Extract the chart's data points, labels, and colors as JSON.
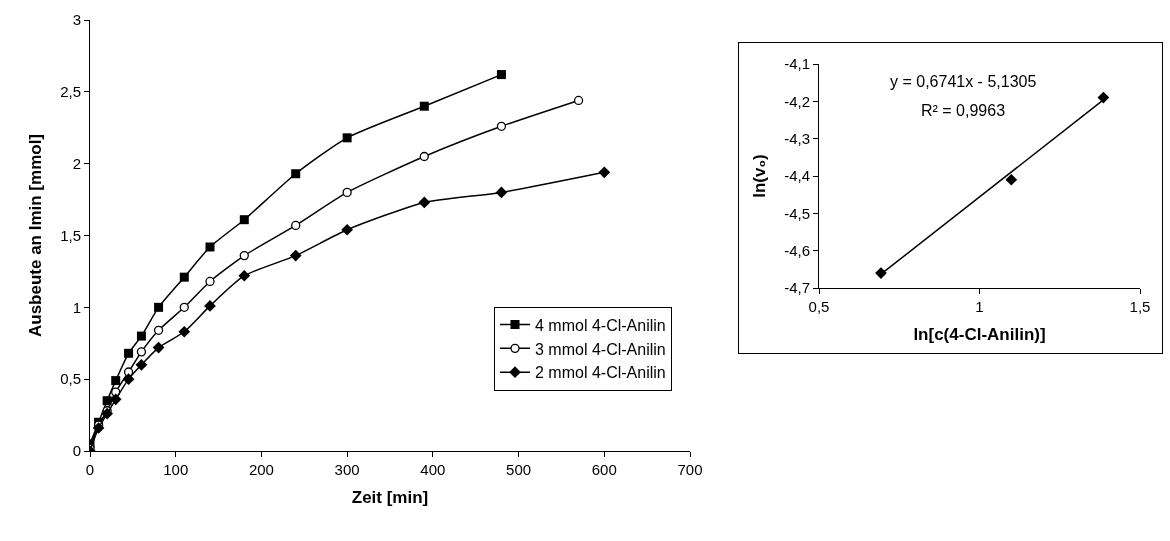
{
  "chart_data": [
    {
      "type": "line",
      "xlabel": "Zeit [min]",
      "ylabel": "Ausbeute an Imin [mmol]",
      "xlim": [
        0,
        700
      ],
      "ylim": [
        0,
        3
      ],
      "xticks": [
        0,
        100,
        200,
        300,
        400,
        500,
        600,
        700
      ],
      "yticks": [
        0,
        {
          "value": 0.5,
          "label": "0,5"
        },
        1,
        {
          "value": 1.5,
          "label": "1,5"
        },
        2,
        {
          "value": 2.5,
          "label": "2,5"
        },
        3
      ],
      "grid": false,
      "legend": "bottom right",
      "line_style": "solid",
      "series": [
        {
          "name": "4 mmol 4-Cl-Anilin",
          "color": "#000000",
          "marker": "square",
          "x": [
            0,
            10,
            20,
            30,
            45,
            60,
            80,
            110,
            140,
            180,
            240,
            300,
            390,
            480
          ],
          "values": [
            0.05,
            0.2,
            0.35,
            0.49,
            0.68,
            0.8,
            1.0,
            1.21,
            1.42,
            1.61,
            1.93,
            2.18,
            2.4,
            2.62
          ]
        },
        {
          "name": "3 mmol 4-Cl-Anilin",
          "color": "#000000",
          "marker": "circle",
          "x": [
            0,
            10,
            20,
            30,
            45,
            60,
            80,
            110,
            140,
            180,
            240,
            300,
            390,
            480,
            570
          ],
          "values": [
            0.02,
            0.18,
            0.28,
            0.41,
            0.55,
            0.69,
            0.84,
            1.0,
            1.18,
            1.36,
            1.57,
            1.8,
            2.05,
            2.26,
            2.44
          ]
        },
        {
          "name": "2 mmol 4-Cl-Anilin",
          "color": "#000000",
          "marker": "diamond",
          "x": [
            0,
            10,
            20,
            30,
            45,
            60,
            80,
            110,
            140,
            180,
            240,
            300,
            390,
            480,
            600
          ],
          "values": [
            0,
            0.16,
            0.26,
            0.36,
            0.5,
            0.6,
            0.72,
            0.83,
            1.01,
            1.22,
            1.36,
            1.54,
            1.73,
            1.8,
            1.94
          ]
        }
      ]
    },
    {
      "type": "scatter",
      "xlabel": "ln[c(4-Cl-Anilin)]",
      "ylabel": "ln(v₀)",
      "xlim": [
        0.5,
        1.5
      ],
      "ylim": [
        -4.7,
        -4.1
      ],
      "xticks": [
        {
          "value": 0.5,
          "label": "0,5"
        },
        1,
        {
          "value": 1.5,
          "label": "1,5"
        }
      ],
      "yticks": [
        {
          "value": -4.7,
          "label": "-4,7"
        },
        {
          "value": -4.6,
          "label": "-4,6"
        },
        {
          "value": -4.5,
          "label": "-4,5"
        },
        {
          "value": -4.4,
          "label": "-4,4"
        },
        {
          "value": -4.3,
          "label": "-4,3"
        },
        {
          "value": -4.2,
          "label": "-4,2"
        },
        {
          "value": -4.1,
          "label": "-4,1"
        }
      ],
      "grid": false,
      "legend": false,
      "annotations": [
        "y = 0,6741x - 5,1305",
        "R² = 0,9963"
      ],
      "series": [
        {
          "color": "#000000",
          "marker": "diamond",
          "x": [
            0.693,
            1.099,
            1.386
          ],
          "values": [
            -4.66,
            -4.41,
            -4.19
          ]
        },
        {
          "type": "line",
          "color": "#000000",
          "marker": "none",
          "x": [
            0.693,
            1.386
          ],
          "values": [
            -4.663,
            -4.196
          ]
        }
      ]
    }
  ]
}
